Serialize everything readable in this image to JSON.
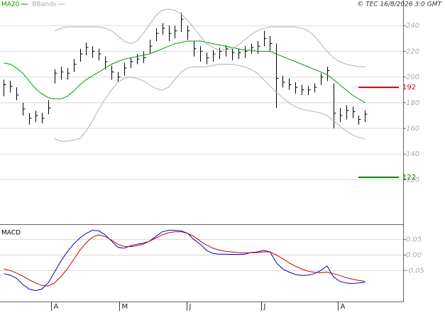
{
  "header": {
    "copyright": "© TEC 16/8/2026 3:0 GMT"
  },
  "chart_data": [
    {
      "type": "ohlc",
      "xlim": [
        -0.6,
        63
      ],
      "ylim": [
        86,
        260
      ],
      "yticks": [
        120,
        140,
        160,
        180,
        200,
        220,
        240
      ],
      "grid": true,
      "bar_color": "#000000",
      "high": [
        198,
        197,
        192,
        180,
        172,
        174,
        172,
        182,
        206,
        208,
        207,
        214,
        222,
        227,
        224,
        222,
        216,
        209,
        204,
        211,
        215,
        218,
        220,
        229,
        238,
        242,
        240,
        240,
        250,
        240,
        228,
        224,
        219,
        221,
        223,
        225,
        222,
        222,
        224,
        226,
        228,
        236,
        232,
        226,
        201,
        199,
        196,
        194,
        193,
        195,
        203,
        208,
        195,
        176,
        178,
        177,
        170,
        174
      ],
      "low": [
        185,
        188,
        182,
        170,
        163,
        165,
        164,
        171,
        195,
        198,
        198,
        204,
        212,
        217,
        215,
        213,
        206,
        198,
        196,
        201,
        207,
        210,
        211,
        218,
        228,
        233,
        228,
        230,
        235,
        229,
        216,
        212,
        210,
        212,
        214,
        216,
        213,
        214,
        215,
        218,
        218,
        224,
        220,
        176,
        192,
        190,
        187,
        186,
        186,
        188,
        194,
        197,
        160,
        165,
        167,
        168,
        163,
        165
      ],
      "close": [
        194,
        193,
        186,
        175,
        168,
        170,
        168,
        176,
        203,
        204,
        203,
        210,
        218,
        223,
        220,
        218,
        212,
        204,
        200,
        207,
        212,
        214,
        215,
        224,
        234,
        238,
        234,
        236,
        245,
        236,
        222,
        220,
        215,
        218,
        220,
        222,
        219,
        219,
        220,
        223,
        224,
        230,
        226,
        199,
        196,
        194,
        192,
        190,
        190,
        192,
        200,
        205,
        172,
        170,
        174,
        173,
        167,
        171
      ],
      "series": [
        {
          "name": "MA20",
          "color": "#00a000",
          "values": [
            211,
            210,
            207,
            203,
            197,
            191,
            187,
            184,
            183,
            183,
            185,
            189,
            194,
            198,
            201,
            204,
            207,
            210,
            212,
            214,
            215,
            216,
            217,
            218,
            220,
            222,
            224,
            226,
            227,
            228,
            228,
            228,
            227,
            226,
            225,
            224,
            223,
            222,
            221,
            221,
            220,
            220,
            220,
            218,
            216,
            214,
            212,
            210,
            208,
            206,
            204,
            202,
            198,
            194,
            190,
            186,
            183,
            180
          ]
        },
        {
          "name": "BBands",
          "color": "#b0b0b0",
          "values": [
            null,
            null,
            null,
            null,
            null,
            null,
            null,
            null,
            236,
            238,
            239,
            239,
            239,
            239,
            239,
            239,
            238,
            236,
            232,
            228,
            226,
            228,
            234,
            241,
            248,
            252,
            253,
            252,
            249,
            244,
            238,
            232,
            226,
            223,
            221,
            221,
            222,
            225,
            229,
            233,
            236,
            238,
            239,
            239,
            239,
            239,
            239,
            238,
            236,
            232,
            226,
            220,
            215,
            212,
            210,
            209,
            208,
            208
          ],
          "lower": [
            null,
            null,
            null,
            null,
            null,
            null,
            null,
            null,
            152,
            150,
            150,
            151,
            152,
            158,
            166,
            175,
            183,
            190,
            196,
            199,
            200,
            199,
            197,
            194,
            191,
            190,
            192,
            198,
            204,
            207,
            208,
            208,
            208,
            209,
            210,
            210,
            210,
            209,
            208,
            206,
            203,
            198,
            193,
            188,
            184,
            180,
            177,
            175,
            174,
            173,
            172,
            170,
            166,
            162,
            158,
            155,
            153,
            152
          ]
        }
      ],
      "levels": [
        {
          "value": 192,
          "color": "#cc0000"
        },
        {
          "value": 122,
          "color": "#008000"
        }
      ]
    },
    {
      "type": "line",
      "title": "MACD",
      "xlim": [
        -0.6,
        63
      ],
      "ylim": [
        -0.15,
        0.095
      ],
      "yticks": [
        -0.05,
        {
          "value": 0,
          "label": "0.00"
        },
        0.05
      ],
      "xticks": [
        {
          "value": 7.5,
          "label": "A"
        },
        {
          "value": 18.2,
          "label": "M"
        },
        {
          "value": 28.8,
          "label": "J"
        },
        {
          "value": 40.6,
          "label": "J"
        },
        {
          "value": 52.7,
          "label": "A"
        }
      ],
      "grid": true,
      "series": [
        {
          "color": "#0000cc",
          "values": [
            -0.06,
            -0.065,
            -0.075,
            -0.095,
            -0.11,
            -0.115,
            -0.11,
            -0.09,
            -0.055,
            -0.02,
            0.01,
            0.035,
            0.055,
            0.07,
            0.08,
            0.078,
            0.065,
            0.045,
            0.025,
            0.022,
            0.03,
            0.035,
            0.038,
            0.045,
            0.06,
            0.075,
            0.08,
            0.08,
            0.078,
            0.07,
            0.05,
            0.035,
            0.015,
            0.005,
            0.003,
            0.003,
            0.002,
            0.002,
            0.003,
            0.008,
            0.01,
            0.015,
            0.01,
            -0.025,
            -0.045,
            -0.055,
            -0.063,
            -0.066,
            -0.065,
            -0.06,
            -0.05,
            -0.035,
            -0.07,
            -0.085,
            -0.09,
            -0.092,
            -0.09,
            -0.088
          ]
        },
        {
          "color": "#cc0000",
          "values": [
            -0.045,
            -0.05,
            -0.058,
            -0.068,
            -0.08,
            -0.09,
            -0.098,
            -0.1,
            -0.09,
            -0.07,
            -0.045,
            -0.015,
            0.015,
            0.04,
            0.058,
            0.065,
            0.06,
            0.048,
            0.035,
            0.028,
            0.027,
            0.03,
            0.035,
            0.045,
            0.055,
            0.065,
            0.072,
            0.075,
            0.075,
            0.07,
            0.06,
            0.045,
            0.032,
            0.022,
            0.016,
            0.012,
            0.01,
            0.008,
            0.007,
            0.007,
            0.008,
            0.01,
            0.01,
            0,
            -0.012,
            -0.025,
            -0.036,
            -0.045,
            -0.052,
            -0.056,
            -0.057,
            -0.055,
            -0.06,
            -0.066,
            -0.073,
            -0.078,
            -0.082,
            -0.085
          ]
        }
      ]
    }
  ]
}
